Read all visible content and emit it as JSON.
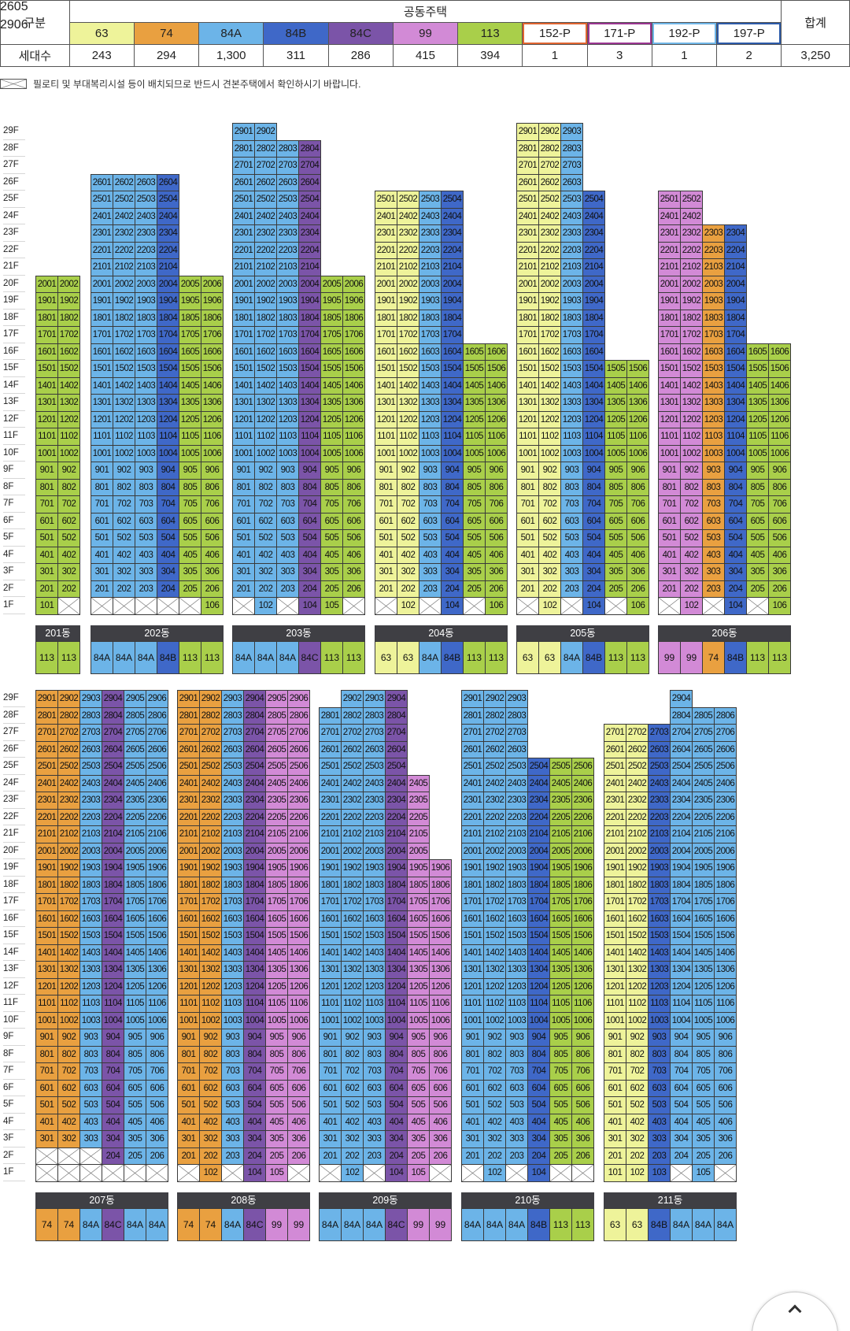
{
  "summary": {
    "col_label": "구분",
    "group_label": "공동주택",
    "total_label": "합계",
    "row_label": "세대수",
    "total_value": "3,250",
    "types": [
      {
        "name": "63",
        "count": "243",
        "color": "#eef39a",
        "p": false
      },
      {
        "name": "74",
        "count": "294",
        "color": "#e9a040",
        "p": false
      },
      {
        "name": "84A",
        "count": "1,300",
        "color": "#6cb4e8",
        "p": false
      },
      {
        "name": "84B",
        "count": "311",
        "color": "#3f68c8",
        "p": false
      },
      {
        "name": "84C",
        "count": "286",
        "color": "#7b54a8",
        "p": false
      },
      {
        "name": "99",
        "count": "415",
        "color": "#d28ad6",
        "p": false
      },
      {
        "name": "113",
        "count": "394",
        "color": "#a9cf4a",
        "p": false
      },
      {
        "name": "152-P",
        "count": "1",
        "color": "#e0642f",
        "p": true
      },
      {
        "name": "171-P",
        "count": "3",
        "color": "#9a3591",
        "p": true
      },
      {
        "name": "192-P",
        "count": "1",
        "color": "#6fb6e8",
        "p": true
      },
      {
        "name": "197-P",
        "count": "2",
        "color": "#2c5aa8",
        "p": true
      }
    ]
  },
  "note": "필로티 및 부대복리시설 등이 배치되므로 반드시 견본주택에서 확인하시기 바랍니다.",
  "buildings": [
    {
      "dong": "201동",
      "top": 20,
      "types": [
        "113",
        "113"
      ],
      "lines": [
        1,
        2
      ],
      "x": [
        "1-1"
      ]
    },
    {
      "dong": "202동",
      "types": [
        "84A",
        "84A",
        "84A",
        "84B",
        "113",
        "113"
      ],
      "lines": [
        1,
        2,
        3,
        4,
        5,
        6
      ]
    },
    {
      "dong": "203동",
      "types": [
        "84A",
        "84A",
        "84A",
        "84C",
        "113",
        "113"
      ],
      "lines": [
        1,
        2,
        3,
        4,
        5,
        6
      ]
    },
    {
      "dong": "204동",
      "types": [
        "63",
        "63",
        "84A",
        "84B",
        "113",
        "113"
      ],
      "lines": [
        1,
        2,
        3,
        4,
        5,
        6
      ]
    },
    {
      "dong": "205동",
      "types": [
        "63",
        "63",
        "84A",
        "84B",
        "113",
        "113"
      ],
      "lines": [
        1,
        2,
        3,
        4,
        5,
        6
      ]
    },
    {
      "dong": "206동",
      "types": [
        "99",
        "99",
        "74",
        "84B",
        "113",
        "113"
      ],
      "lines": [
        1,
        2,
        3,
        4,
        5,
        6
      ]
    },
    {
      "dong": "207동",
      "types": [
        "74",
        "74",
        "84A",
        "84C",
        "84A",
        "84A"
      ],
      "lines": [
        1,
        2,
        3,
        4,
        5,
        6
      ]
    },
    {
      "dong": "208동",
      "types": [
        "74",
        "74",
        "84A",
        "84C",
        "99",
        "99"
      ],
      "lines": [
        1,
        2,
        3,
        4,
        5,
        6
      ]
    },
    {
      "dong": "209동",
      "types": [
        "84A",
        "84A",
        "84A",
        "84C",
        "99",
        "99"
      ],
      "lines": [
        1,
        2,
        3,
        4,
        5,
        6
      ]
    },
    {
      "dong": "210동",
      "types": [
        "84A",
        "84A",
        "84A",
        "84B",
        "113",
        "113"
      ],
      "p_label": "197-P",
      "lines": [
        1,
        2,
        3,
        4,
        5,
        6
      ]
    },
    {
      "dong": "211동",
      "types": [
        "63",
        "63",
        "84B",
        "84A",
        "84A",
        "84A"
      ],
      "p_label": "152-P",
      "lines": [
        1,
        2,
        3,
        4,
        5,
        6
      ]
    }
  ],
  "penthouse_labels": {
    "b210": "2605",
    "b211": "2906"
  },
  "floors_top": [
    "29F",
    "28F",
    "27F",
    "26F",
    "25F",
    "24F",
    "23F",
    "22F",
    "21F",
    "20F",
    "19F",
    "18F",
    "17F",
    "16F",
    "15F",
    "14F",
    "13F",
    "12F",
    "11F",
    "10F",
    "9F",
    "8F",
    "7F",
    "6F",
    "5F",
    "4F",
    "3F",
    "2F",
    "1F"
  ],
  "floors_bottom": [
    "29F",
    "28F",
    "27F",
    "26F",
    "25F",
    "24F",
    "23F",
    "22F",
    "21F",
    "20F",
    "19F",
    "18F",
    "17F",
    "16F",
    "15F",
    "14F",
    "13F",
    "12F",
    "11F",
    "10F",
    "9F",
    "8F",
    "7F",
    "6F",
    "5F",
    "4F",
    "3F",
    "2F",
    "1F"
  ]
}
